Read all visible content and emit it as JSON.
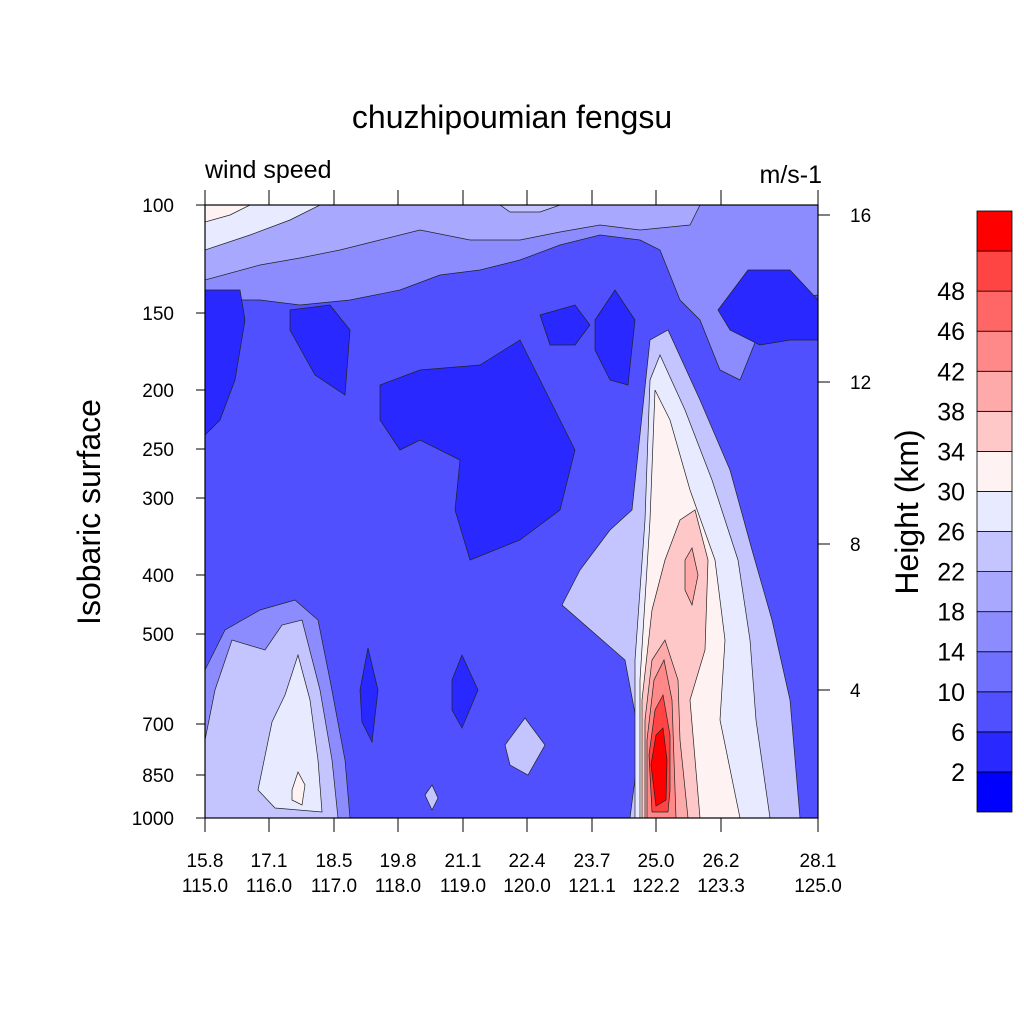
{
  "chart_data": {
    "type": "heatmap",
    "title": "chuzhipoumian fengsu",
    "left_string": "wind speed",
    "right_string": "m/s-1",
    "ylabel": "Isobaric surface",
    "ylabel_right": "Height (km)",
    "y_axis_log": true,
    "grid": false,
    "legend_position": "right",
    "yticks": [
      100,
      150,
      200,
      250,
      300,
      400,
      500,
      700,
      850,
      1000
    ],
    "yticks_right": [
      16,
      12,
      8,
      4
    ],
    "xticks": [
      {
        "lat": "15.8",
        "lon": "115.0"
      },
      {
        "lat": "17.1",
        "lon": "116.0"
      },
      {
        "lat": "18.5",
        "lon": "117.0"
      },
      {
        "lat": "19.8",
        "lon": "118.0"
      },
      {
        "lat": "21.1",
        "lon": "119.0"
      },
      {
        "lat": "22.4",
        "lon": "120.0"
      },
      {
        "lat": "23.7",
        "lon": "121.1"
      },
      {
        "lat": "25.0",
        "lon": "122.2"
      },
      {
        "lat": "26.2",
        "lon": "123.3"
      },
      {
        "lat": "28.1",
        "lon": "125.0"
      }
    ],
    "colorbar_levels": [
      2,
      6,
      10,
      14,
      18,
      22,
      26,
      30,
      34,
      38,
      42,
      46,
      48
    ],
    "colorbar_colors": [
      "#0000ff",
      "#2828ff",
      "#5050ff",
      "#7070ff",
      "#8c8cff",
      "#a8a8ff",
      "#c4c4ff",
      "#e8eaff",
      "#fff2f2",
      "#ffc8c8",
      "#ffaaaa",
      "#ff8888",
      "#ff6666",
      "#ff4444",
      "#ff0000"
    ],
    "wind_speed_grid": {
      "pressure": [
        100,
        150,
        200,
        250,
        300,
        400,
        500,
        700,
        850,
        1000
      ],
      "position": [
        0,
        1,
        2,
        3,
        4,
        5,
        6,
        7,
        8,
        9
      ],
      "values": [
        [
          28,
          22,
          18,
          16,
          16,
          24,
          16,
          12,
          12,
          12
        ],
        [
          10,
          8,
          4,
          10,
          10,
          8,
          6,
          10,
          8,
          4
        ],
        [
          8,
          10,
          10,
          6,
          4,
          6,
          8,
          24,
          10,
          8
        ],
        [
          4,
          8,
          8,
          6,
          4,
          4,
          8,
          30,
          12,
          8
        ],
        [
          4,
          8,
          8,
          8,
          4,
          4,
          10,
          32,
          14,
          8
        ],
        [
          6,
          8,
          8,
          8,
          8,
          10,
          18,
          38,
          18,
          10
        ],
        [
          18,
          14,
          10,
          8,
          8,
          8,
          14,
          42,
          20,
          10
        ],
        [
          20,
          26,
          6,
          8,
          6,
          10,
          10,
          46,
          22,
          12
        ],
        [
          18,
          28,
          10,
          10,
          10,
          12,
          10,
          48,
          20,
          12
        ],
        [
          12,
          14,
          6,
          8,
          8,
          10,
          6,
          42,
          16,
          10
        ]
      ]
    }
  }
}
